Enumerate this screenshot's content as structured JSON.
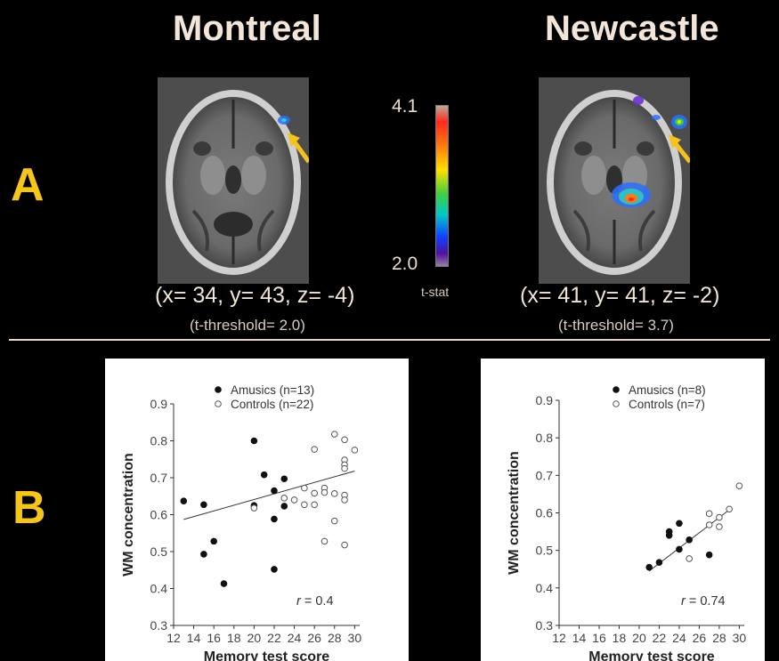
{
  "figure": {
    "sites": [
      {
        "name": "Montreal",
        "coordinates": "(x= 34, y= 43, z= -4)",
        "threshold": "(t-threshold= 2.0)"
      },
      {
        "name": "Newcastle",
        "coordinates": "(x= 41, y= 41, z= -2)",
        "threshold": "(t-threshold= 3.7)"
      }
    ],
    "panel_labels": [
      "A",
      "B"
    ],
    "colorbar": {
      "max": "4.1",
      "min": "2.0",
      "label": "t-stat"
    }
  },
  "chart_data": [
    {
      "type": "scatter",
      "xlabel": "Memory test score",
      "ylabel": "WM  concentration",
      "xlim": [
        12,
        30.5
      ],
      "ylim": [
        0.3,
        0.9
      ],
      "xticks": [
        "12",
        "14",
        "16",
        "18",
        "20",
        "22",
        "24",
        "26",
        "28",
        "30"
      ],
      "yticks": [
        "0.3",
        "0.4",
        "0.5",
        "0.6",
        "0.7",
        "0.8",
        "0.9"
      ],
      "legend_position": "top-right",
      "annotation": {
        "var": "r",
        "text": " = 0.4"
      },
      "series": [
        {
          "name": "Amusics (n=13)",
          "marker": "filled",
          "points": [
            [
              13,
              0.637
            ],
            [
              15,
              0.627
            ],
            [
              15,
              0.493
            ],
            [
              16,
              0.528
            ],
            [
              17,
              0.413
            ],
            [
              20,
              0.8
            ],
            [
              21,
              0.708
            ],
            [
              22,
              0.665
            ],
            [
              22,
              0.588
            ],
            [
              22,
              0.452
            ],
            [
              23,
              0.697
            ],
            [
              23,
              0.623
            ],
            [
              20,
              0.625
            ]
          ]
        },
        {
          "name": "Controls (n=22)",
          "marker": "open",
          "points": [
            [
              20,
              0.618
            ],
            [
              25,
              0.672
            ],
            [
              25,
              0.627
            ],
            [
              26,
              0.777
            ],
            [
              26,
              0.627
            ],
            [
              27,
              0.672
            ],
            [
              27,
              0.528
            ],
            [
              27,
              0.66
            ],
            [
              28,
              0.818
            ],
            [
              28,
              0.657
            ],
            [
              28,
              0.583
            ],
            [
              29,
              0.803
            ],
            [
              29,
              0.748
            ],
            [
              29,
              0.735
            ],
            [
              29,
              0.725
            ],
            [
              29,
              0.653
            ],
            [
              29,
              0.64
            ],
            [
              29,
              0.518
            ],
            [
              30,
              0.775
            ],
            [
              26,
              0.658
            ],
            [
              24,
              0.64
            ],
            [
              23,
              0.645
            ]
          ]
        }
      ],
      "trendline": [
        [
          13,
          0.587
        ],
        [
          30,
          0.718
        ]
      ]
    },
    {
      "type": "scatter",
      "xlabel": "Memory test score",
      "ylabel": "WM  concentration",
      "xlim": [
        12,
        30.5
      ],
      "ylim": [
        0.3,
        0.9
      ],
      "xticks": [
        "12",
        "14",
        "16",
        "18",
        "20",
        "22",
        "24",
        "26",
        "28",
        "30"
      ],
      "yticks": [
        "0.3",
        "0.4",
        "0.5",
        "0.6",
        "0.7",
        "0.8",
        "0.9"
      ],
      "legend_position": "top-right",
      "annotation": {
        "var": "r",
        "text": " = 0.74"
      },
      "series": [
        {
          "name": "Amusics (n=8)",
          "marker": "filled",
          "points": [
            [
              21,
              0.455
            ],
            [
              22,
              0.468
            ],
            [
              23,
              0.55
            ],
            [
              23,
              0.54
            ],
            [
              24,
              0.572
            ],
            [
              24,
              0.503
            ],
            [
              25,
              0.528
            ],
            [
              27,
              0.488
            ]
          ]
        },
        {
          "name": "Controls (n=7)",
          "marker": "open",
          "points": [
            [
              25,
              0.478
            ],
            [
              27,
              0.598
            ],
            [
              27,
              0.568
            ],
            [
              28,
              0.588
            ],
            [
              28,
              0.563
            ],
            [
              29,
              0.61
            ],
            [
              30,
              0.672
            ]
          ]
        }
      ],
      "trendline": [
        [
          21,
          0.445
        ],
        [
          29,
          0.608
        ]
      ]
    }
  ]
}
